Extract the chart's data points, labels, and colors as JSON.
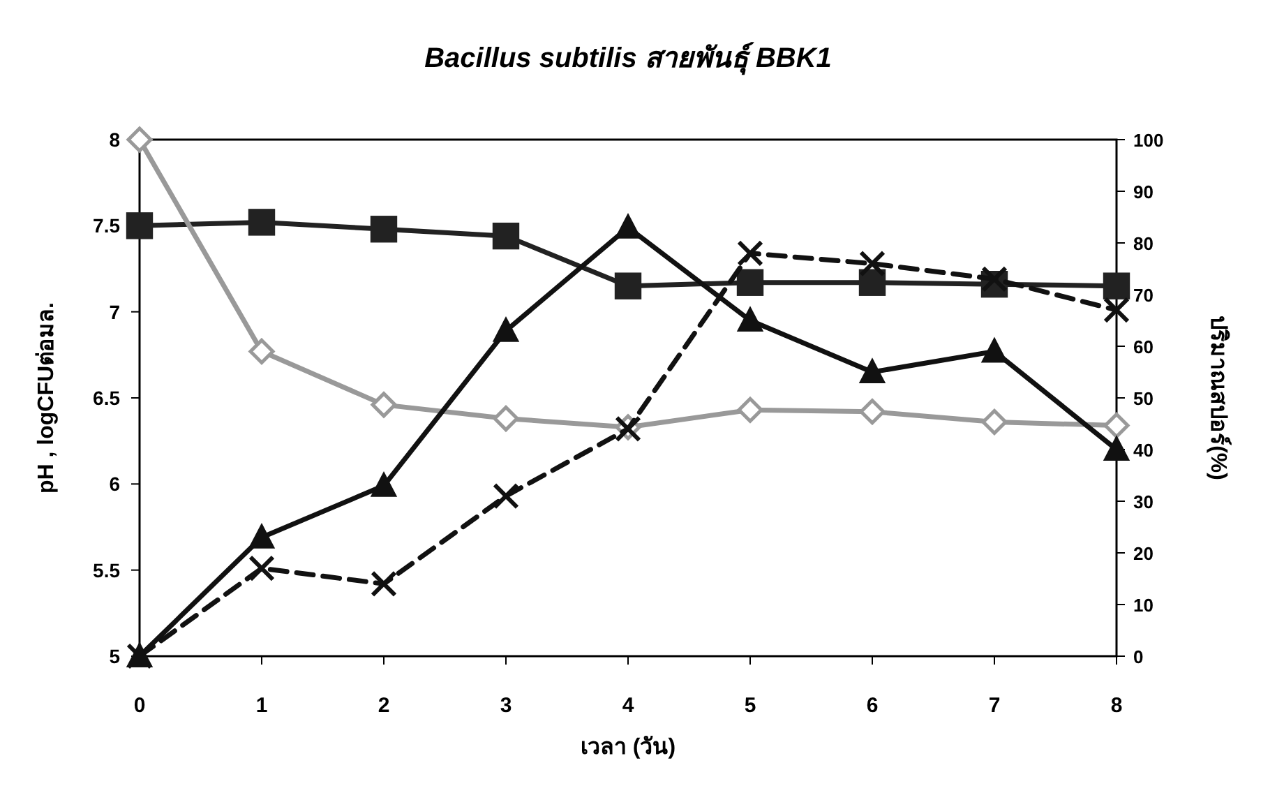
{
  "chart_data": {
    "type": "line",
    "title": "Bacillus subtilis สายพันธุ์ BBK1",
    "xlabel": "เวลา (วัน)",
    "ylabel": "pH , logCFUต่อมล.",
    "y2label": "ปริมาณสปอร์(%)",
    "x": [
      0,
      1,
      2,
      3,
      4,
      5,
      6,
      7,
      8
    ],
    "xlim": [
      0,
      8
    ],
    "xticks": [
      0,
      1,
      2,
      3,
      4,
      5,
      6,
      7,
      8
    ],
    "ylim": [
      5,
      8
    ],
    "yticks": [
      5,
      5.5,
      6,
      6.5,
      7,
      7.5,
      8
    ],
    "y2lim": [
      0,
      100
    ],
    "y2ticks": [
      0,
      10,
      20,
      30,
      40,
      50,
      60,
      70,
      80,
      90,
      100
    ],
    "grid": false,
    "series": [
      {
        "color": "#222222",
        "marker": "square",
        "line_style": "solid",
        "values": [
          7.5,
          7.52,
          7.48,
          7.44,
          7.15,
          7.17,
          7.17,
          7.16,
          7.15
        ]
      },
      {
        "color": "#999999",
        "marker": "diamond",
        "line_style": "solid",
        "values": [
          8.0,
          6.77,
          6.46,
          6.38,
          6.33,
          6.43,
          6.42,
          6.36,
          6.34
        ]
      },
      {
        "color": "#111111",
        "marker": "cross",
        "line_style": "dashed",
        "axis": "y2",
        "values": [
          0,
          17,
          14,
          31,
          44,
          78,
          76,
          73,
          67
        ]
      },
      {
        "color": "#111111",
        "marker": "triangle",
        "line_style": "solid",
        "axis": "y2",
        "values": [
          0,
          23,
          33,
          63,
          83,
          65,
          55,
          59,
          40
        ]
      }
    ]
  }
}
